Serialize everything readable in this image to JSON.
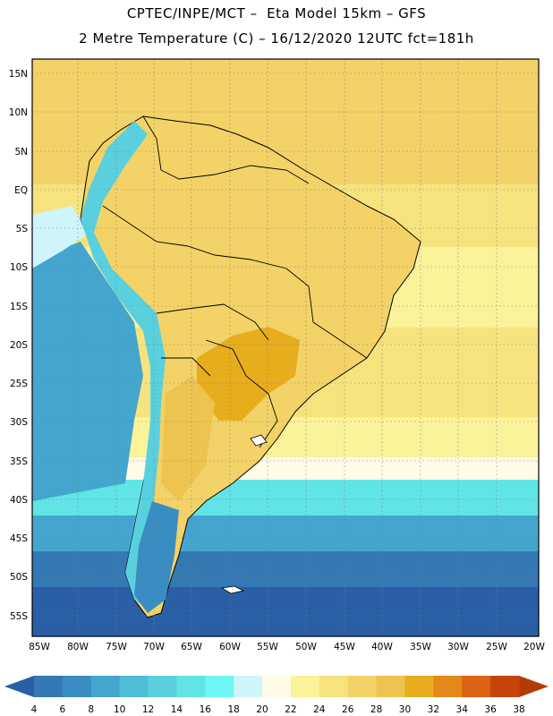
{
  "header": {
    "title_line1": "CPTEC/INPE/MCT –  Eta Model 15km – GFS",
    "title_line2": "2 Metre Temperature (C) – 16/12/2020 12UTC fct=181h"
  },
  "map": {
    "variable": "2 Metre Temperature",
    "unit": "C",
    "lat_labels": [
      "15N",
      "10N",
      "5N",
      "EQ",
      "5S",
      "10S",
      "15S",
      "20S",
      "25S",
      "30S",
      "35S",
      "40S",
      "45S",
      "50S",
      "55S"
    ],
    "lon_labels": [
      "85W",
      "80W",
      "75W",
      "70W",
      "65W",
      "60W",
      "55W",
      "50W",
      "45W",
      "40W",
      "35W",
      "30W",
      "25W",
      "20W"
    ]
  },
  "colorbar": {
    "ticks": [
      "4",
      "6",
      "8",
      "10",
      "12",
      "14",
      "16",
      "18",
      "20",
      "22",
      "24",
      "26",
      "28",
      "30",
      "32",
      "34",
      "36",
      "38"
    ],
    "colors": [
      "#2a5fa6",
      "#3478b4",
      "#3a8dc2",
      "#44a6cf",
      "#4fbcd8",
      "#5ad0de",
      "#61e4e6",
      "#6ff6f6",
      "#cff5fb",
      "#fffbe6",
      "#fbf39a",
      "#f7e37e",
      "#f3d267",
      "#ecc44f",
      "#e8ad1c",
      "#e3891a",
      "#dc6214",
      "#c64409",
      "#b43a0c"
    ]
  }
}
